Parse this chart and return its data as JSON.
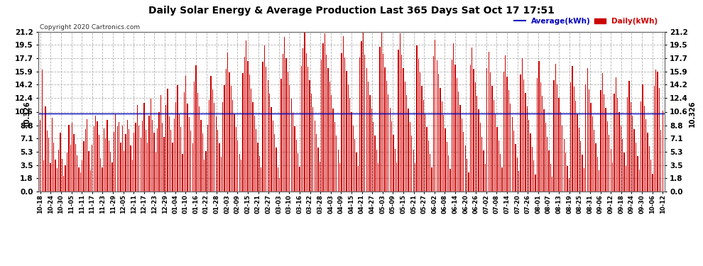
{
  "title": "Daily Solar Energy & Average Production Last 365 Days Sat Oct 17 17:51",
  "copyright": "Copyright 2020 Cartronics.com",
  "average_value": 10.326,
  "average_label": "10.326",
  "yticks": [
    0.0,
    1.8,
    3.5,
    5.3,
    7.1,
    8.8,
    10.6,
    12.4,
    14.2,
    15.9,
    17.7,
    19.5,
    21.2
  ],
  "ymax": 21.2,
  "ymin": 0.0,
  "bar_color": "#cc0000",
  "average_line_color": "#0000bb",
  "grid_color": "#aaaaaa",
  "background_color": "#ffffff",
  "title_color": "#000000",
  "legend_average_color": "#0000bb",
  "legend_daily_color": "#cc0000",
  "xtick_labels": [
    "10-18",
    "10-24",
    "10-30",
    "11-05",
    "11-11",
    "11-17",
    "11-23",
    "11-29",
    "12-05",
    "12-11",
    "12-17",
    "12-23",
    "12-29",
    "01-04",
    "01-10",
    "01-16",
    "01-22",
    "01-28",
    "02-03",
    "02-09",
    "02-15",
    "02-21",
    "02-27",
    "03-03",
    "03-10",
    "03-16",
    "03-22",
    "03-28",
    "04-03",
    "04-09",
    "04-15",
    "04-21",
    "04-27",
    "05-03",
    "05-09",
    "05-15",
    "05-21",
    "05-27",
    "06-02",
    "06-08",
    "06-14",
    "06-20",
    "06-26",
    "07-02",
    "07-08",
    "07-14",
    "07-20",
    "07-26",
    "08-01",
    "08-07",
    "08-13",
    "08-19",
    "08-25",
    "08-31",
    "09-06",
    "09-12",
    "09-18",
    "09-24",
    "09-30",
    "10-06",
    "10-12"
  ],
  "daily_values": [
    9.5,
    16.2,
    4.1,
    11.3,
    8.1,
    7.2,
    3.8,
    9.8,
    6.5,
    4.2,
    3.1,
    5.6,
    7.8,
    4.3,
    2.1,
    3.5,
    5.2,
    8.9,
    6.2,
    9.1,
    7.6,
    6.3,
    4.8,
    3.2,
    2.5,
    4.1,
    6.7,
    8.3,
    9.6,
    5.4,
    2.8,
    6.2,
    8.7,
    10.1,
    9.3,
    7.5,
    4.4,
    3.2,
    8.4,
    7.1,
    9.5,
    6.8,
    5.3,
    3.9,
    7.9,
    10.4,
    8.7,
    9.2,
    6.5,
    8.8,
    5.4,
    7.6,
    9.5,
    8.3,
    6.1,
    4.2,
    7.8,
    9.1,
    11.5,
    8.8,
    7.2,
    9.4,
    11.8,
    8.2,
    6.5,
    10.1,
    12.3,
    9.5,
    7.8,
    5.2,
    8.4,
    10.6,
    12.8,
    9.1,
    7.3,
    11.5,
    13.7,
    10.0,
    8.2,
    6.5,
    9.7,
    11.9,
    14.1,
    10.4,
    8.6,
    5.0,
    13.2,
    15.4,
    11.7,
    9.9,
    8.1,
    6.4,
    14.6,
    16.8,
    13.1,
    11.3,
    9.5,
    7.7,
    4.2,
    5.4,
    8.9,
    12.2,
    15.4,
    13.6,
    11.8,
    10.0,
    8.2,
    6.4,
    4.6,
    11.9,
    14.1,
    16.3,
    18.5,
    15.8,
    14.0,
    12.2,
    10.4,
    8.6,
    6.8,
    5.0,
    4.2,
    15.7,
    17.9,
    20.1,
    17.3,
    15.5,
    13.7,
    11.9,
    10.1,
    8.3,
    6.5,
    4.7,
    3.2,
    17.2,
    19.4,
    16.6,
    14.8,
    13.0,
    11.2,
    9.4,
    7.6,
    5.8,
    3.2,
    1.8,
    15.0,
    18.3,
    20.5,
    17.7,
    15.9,
    14.1,
    12.3,
    10.5,
    8.7,
    6.9,
    5.1,
    3.3,
    16.7,
    19.0,
    21.2,
    18.4,
    16.6,
    14.8,
    13.0,
    11.2,
    9.4,
    7.6,
    5.8,
    4.0,
    17.5,
    19.7,
    21.0,
    18.2,
    16.4,
    14.6,
    12.8,
    11.0,
    9.2,
    7.4,
    5.6,
    3.8,
    18.4,
    20.6,
    17.8,
    16.0,
    14.2,
    12.4,
    10.6,
    8.8,
    7.0,
    5.2,
    3.4,
    17.8,
    20.0,
    21.2,
    18.2,
    16.4,
    14.6,
    12.8,
    11.0,
    9.2,
    7.4,
    5.6,
    3.8,
    19.2,
    21.1,
    18.3,
    16.5,
    14.7,
    12.9,
    11.1,
    9.3,
    7.5,
    5.7,
    3.9,
    18.8,
    21.0,
    18.2,
    16.4,
    14.6,
    12.8,
    11.0,
    9.2,
    7.4,
    5.6,
    3.8,
    19.4,
    17.6,
    15.8,
    14.0,
    12.2,
    10.4,
    8.6,
    6.8,
    5.0,
    3.2,
    18.0,
    20.2,
    17.4,
    15.6,
    13.8,
    12.0,
    10.2,
    8.4,
    6.6,
    4.8,
    3.0,
    17.5,
    19.7,
    16.9,
    15.1,
    13.3,
    11.5,
    9.7,
    7.9,
    6.1,
    4.3,
    2.5,
    16.9,
    19.1,
    16.3,
    14.5,
    12.7,
    10.9,
    9.1,
    7.3,
    5.5,
    3.7,
    16.4,
    18.6,
    15.8,
    14.0,
    12.2,
    10.4,
    8.6,
    6.8,
    5.0,
    3.2,
    15.9,
    18.1,
    15.3,
    13.5,
    11.7,
    9.9,
    8.1,
    6.3,
    4.5,
    2.7,
    15.5,
    17.7,
    14.9,
    13.1,
    11.3,
    9.5,
    7.7,
    5.9,
    4.1,
    2.3,
    15.1,
    17.3,
    14.5,
    12.7,
    10.9,
    9.1,
    7.3,
    5.5,
    3.7,
    2.0,
    14.8,
    17.0,
    14.2,
    12.4,
    10.6,
    8.8,
    7.0,
    5.2,
    3.4,
    1.8,
    14.5,
    16.7,
    13.9,
    12.1,
    10.3,
    8.5,
    6.7,
    4.9,
    3.1,
    14.2,
    16.4,
    13.6,
    11.8,
    10.0,
    8.2,
    6.4,
    4.6,
    2.8,
    13.5,
    15.7,
    12.9,
    11.1,
    9.3,
    7.5,
    5.7,
    3.9,
    13.0,
    15.2,
    12.4,
    10.6,
    8.8,
    7.0,
    5.2,
    3.4,
    12.5,
    14.7,
    11.9,
    10.1,
    8.3,
    6.5,
    4.7,
    2.9,
    12.0,
    14.2,
    11.4,
    9.6,
    7.8,
    6.0,
    4.2,
    2.4,
    14.0,
    16.2,
    15.9,
    13.8,
    8.2,
    10.7
  ]
}
